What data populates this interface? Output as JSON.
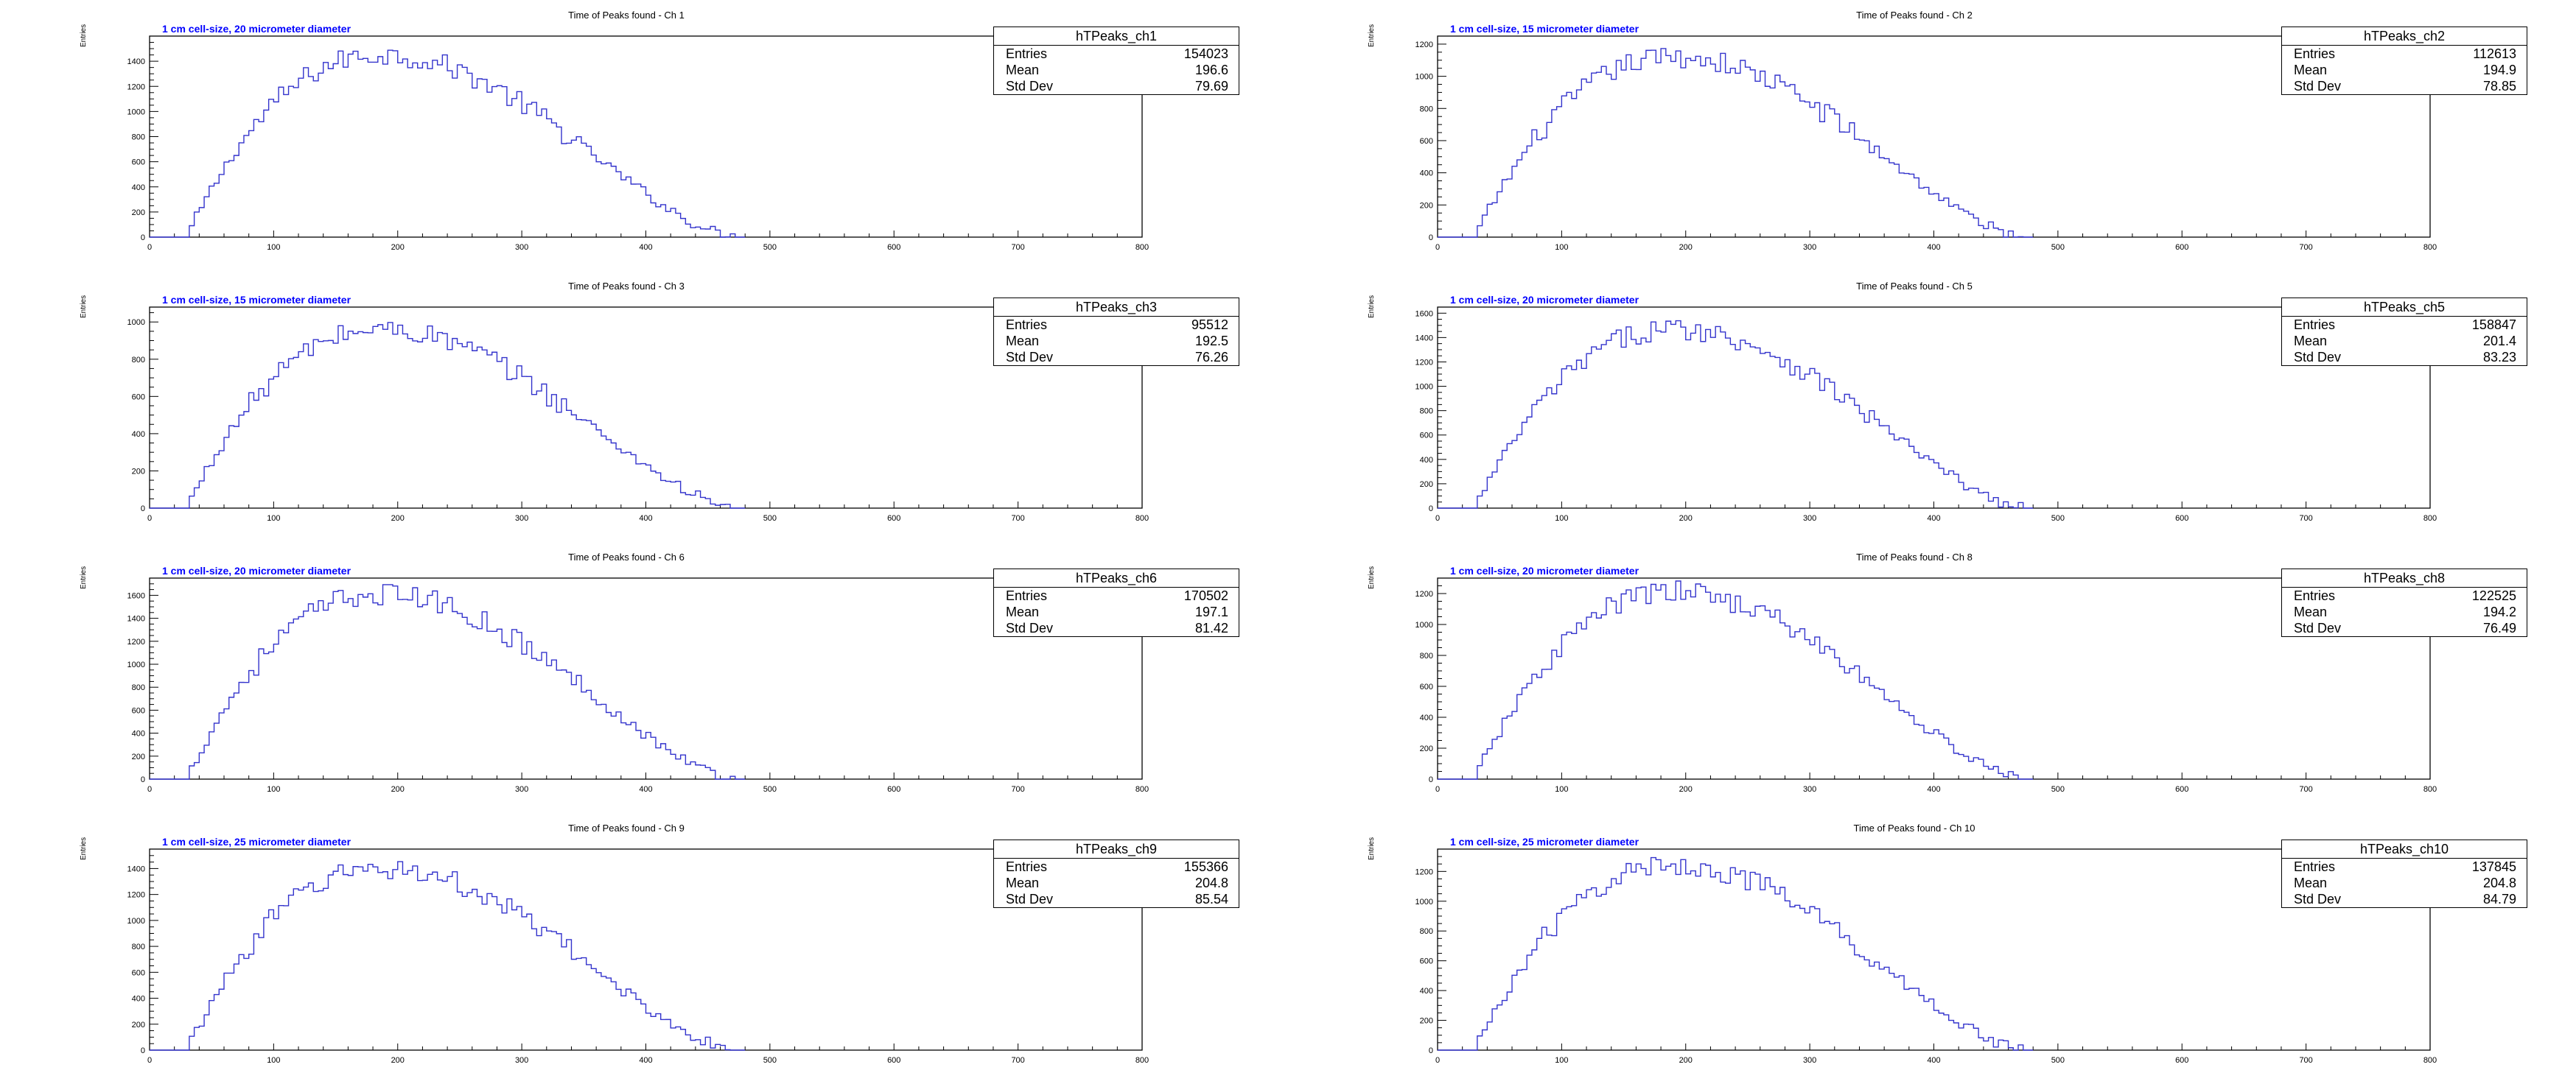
{
  "ylabel": "Entries",
  "chart_data": [
    {
      "type": "histogram",
      "title": "Time of Peaks found - Ch 1",
      "annotation": "1 cm cell-size, 20 micrometer diameter",
      "stats": {
        "name": "hTPeaks_ch1",
        "entries": "154023",
        "mean": "196.6",
        "std_dev": "79.69"
      },
      "xlim": [
        0,
        800
      ],
      "ylim": [
        0,
        1600
      ],
      "x_ticks": [
        0,
        100,
        200,
        300,
        400,
        500,
        600,
        700,
        800
      ],
      "y_ticks": [
        0,
        200,
        400,
        600,
        800,
        1000,
        1200,
        1400
      ],
      "peak": 1450,
      "peak_x": 185,
      "sigma_x": 79.69
    },
    {
      "type": "histogram",
      "title": "Time of Peaks found - Ch 2",
      "annotation": "1 cm cell-size, 15 micrometer diameter",
      "stats": {
        "name": "hTPeaks_ch2",
        "entries": "112613",
        "mean": "194.9",
        "std_dev": "78.85"
      },
      "xlim": [
        0,
        800
      ],
      "ylim": [
        0,
        1250
      ],
      "x_ticks": [
        0,
        100,
        200,
        300,
        400,
        500,
        600,
        700,
        800
      ],
      "y_ticks": [
        0,
        200,
        400,
        600,
        800,
        1000,
        1200
      ],
      "peak": 1120,
      "peak_x": 190,
      "sigma_x": 78.85
    },
    {
      "type": "histogram",
      "title": "Time of Peaks found - Ch 3",
      "annotation": "1 cm cell-size, 15 micrometer diameter",
      "stats": {
        "name": "hTPeaks_ch3",
        "entries": "95512",
        "mean": "192.5",
        "std_dev": "76.26"
      },
      "xlim": [
        0,
        800
      ],
      "ylim": [
        0,
        1080
      ],
      "x_ticks": [
        0,
        100,
        200,
        300,
        400,
        500,
        600,
        700,
        800
      ],
      "y_ticks": [
        0,
        200,
        400,
        600,
        800,
        1000
      ],
      "peak": 960,
      "peak_x": 185,
      "sigma_x": 76.26
    },
    {
      "type": "histogram",
      "title": "Time of Peaks found - Ch 5",
      "annotation": "1 cm cell-size, 20 micrometer diameter",
      "stats": {
        "name": "hTPeaks_ch5",
        "entries": "158847",
        "mean": "201.4",
        "std_dev": "83.23"
      },
      "xlim": [
        0,
        800
      ],
      "ylim": [
        0,
        1650
      ],
      "x_ticks": [
        0,
        100,
        200,
        300,
        400,
        500,
        600,
        700,
        800
      ],
      "y_ticks": [
        0,
        200,
        400,
        600,
        800,
        1000,
        1200,
        1400,
        1600
      ],
      "peak": 1470,
      "peak_x": 190,
      "sigma_x": 83.23
    },
    {
      "type": "histogram",
      "title": "Time of Peaks found - Ch 6",
      "annotation": "1 cm cell-size, 20 micrometer diameter",
      "stats": {
        "name": "hTPeaks_ch6",
        "entries": "170502",
        "mean": "197.1",
        "std_dev": "81.42"
      },
      "xlim": [
        0,
        800
      ],
      "ylim": [
        0,
        1750
      ],
      "x_ticks": [
        0,
        100,
        200,
        300,
        400,
        500,
        600,
        700,
        800
      ],
      "y_ticks": [
        0,
        200,
        400,
        600,
        800,
        1000,
        1200,
        1400,
        1600
      ],
      "peak": 1610,
      "peak_x": 185,
      "sigma_x": 81.42
    },
    {
      "type": "histogram",
      "title": "Time of Peaks found - Ch 8",
      "annotation": "1 cm cell-size, 20 micrometer diameter",
      "stats": {
        "name": "hTPeaks_ch8",
        "entries": "122525",
        "mean": "194.2",
        "std_dev": "76.49"
      },
      "xlim": [
        0,
        800
      ],
      "ylim": [
        0,
        1300
      ],
      "x_ticks": [
        0,
        100,
        200,
        300,
        400,
        500,
        600,
        700,
        800
      ],
      "y_ticks": [
        0,
        200,
        400,
        600,
        800,
        1000,
        1200
      ],
      "peak": 1210,
      "peak_x": 190,
      "sigma_x": 76.49
    },
    {
      "type": "histogram",
      "title": "Time of Peaks found - Ch 9",
      "annotation": "1 cm cell-size, 25 micrometer diameter",
      "stats": {
        "name": "hTPeaks_ch9",
        "entries": "155366",
        "mean": "204.8",
        "std_dev": "85.54"
      },
      "xlim": [
        0,
        800
      ],
      "ylim": [
        0,
        1550
      ],
      "x_ticks": [
        0,
        100,
        200,
        300,
        400,
        500,
        600,
        700,
        800
      ],
      "y_ticks": [
        0,
        200,
        400,
        600,
        800,
        1000,
        1200,
        1400
      ],
      "peak": 1400,
      "peak_x": 185,
      "sigma_x": 85.54
    },
    {
      "type": "histogram",
      "title": "Time of Peaks found - Ch 10",
      "annotation": "1 cm cell-size, 25 micrometer diameter",
      "stats": {
        "name": "hTPeaks_ch10",
        "entries": "137845",
        "mean": "204.8",
        "std_dev": "84.79"
      },
      "xlim": [
        0,
        800
      ],
      "ylim": [
        0,
        1350
      ],
      "x_ticks": [
        0,
        100,
        200,
        300,
        400,
        500,
        600,
        700,
        800
      ],
      "y_ticks": [
        0,
        200,
        400,
        600,
        800,
        1000,
        1200
      ],
      "peak": 1240,
      "peak_x": 190,
      "sigma_x": 84.79
    }
  ],
  "stat_labels": {
    "entries": "Entries",
    "mean": "Mean",
    "std_dev": "Std Dev"
  },
  "colors": {
    "histogram_line": "#3333cc",
    "annotation": "#0000ff",
    "axis": "#000000"
  }
}
